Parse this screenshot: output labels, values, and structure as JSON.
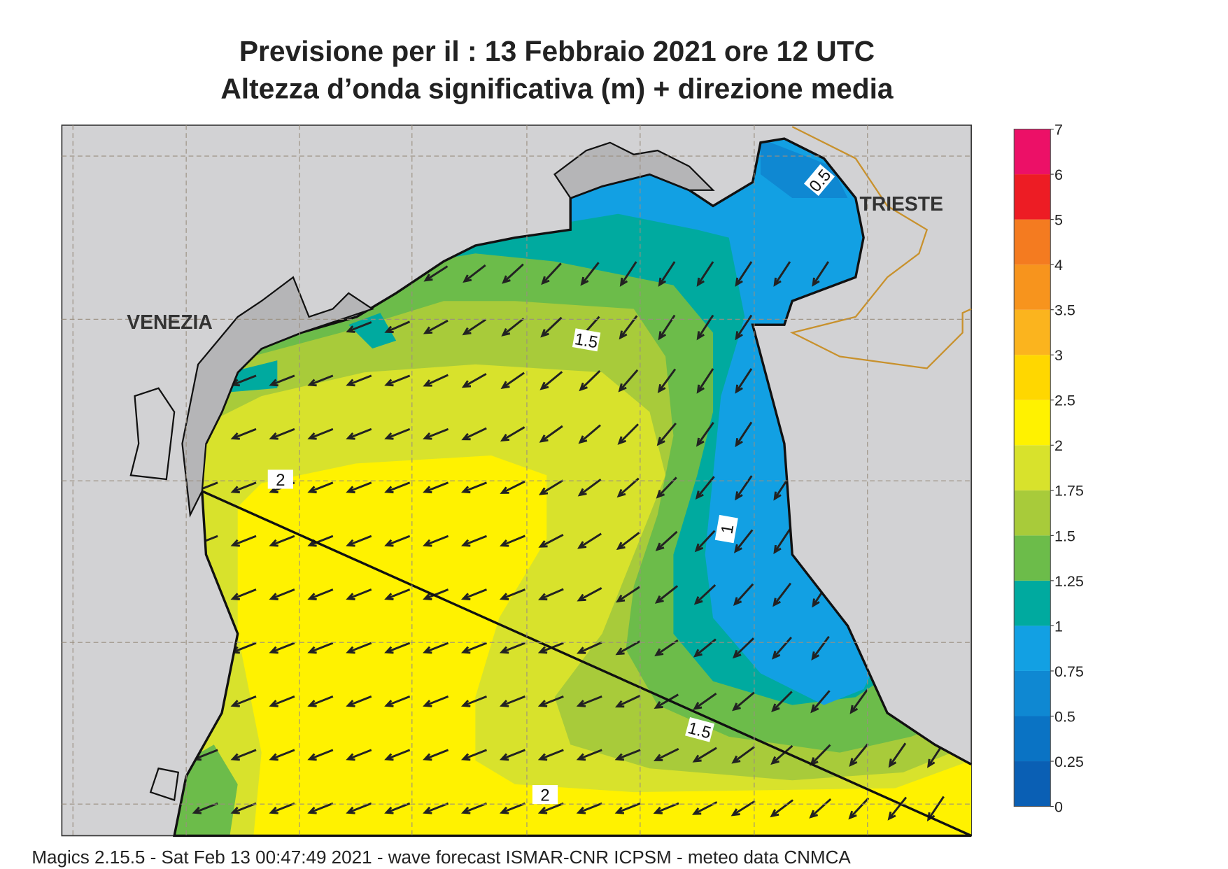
{
  "header": {
    "title": "Previsione per il  :  13  Febbraio 2021   ore 12 UTC",
    "subtitle": "Altezza d’onda significativa (m) + direzione media"
  },
  "places": [
    "VENEZIA",
    "TRIESTE"
  ],
  "contour_labels": [
    0.5,
    1.5,
    1,
    1.5,
    2,
    2
  ],
  "legend": {
    "levels": [
      0,
      0.25,
      0.5,
      0.75,
      1,
      1.25,
      1.5,
      1.75,
      2,
      2.5,
      3,
      3.5,
      4,
      5,
      6,
      7
    ],
    "colors": [
      "#0a5fb4",
      "#0a73c4",
      "#0f88d2",
      "#12a0e3",
      "#00aa9f",
      "#6cbc4a",
      "#a8cb3a",
      "#d8e22c",
      "#fff200",
      "#ffd700",
      "#fbb41e",
      "#f7941d",
      "#f47b20",
      "#ed1c24",
      "#ec1067"
    ]
  },
  "footer": "Magics 2.15.5 - Sat Feb 13 00:47:49 2021 - wave forecast  ISMAR-CNR  ICPSM - meteo data   CNMCA"
}
